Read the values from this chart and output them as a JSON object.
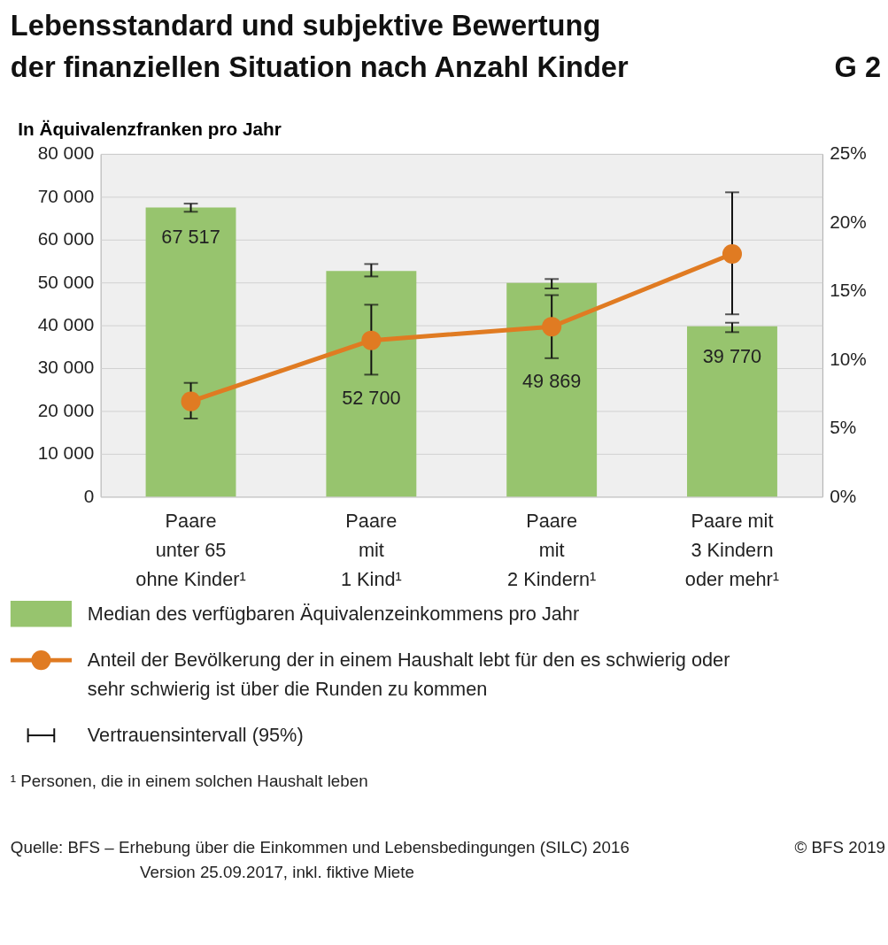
{
  "chart_data": {
    "type": "bar",
    "title": "Lebensstandard und subjektive Bewertung\nder finanziellen Situation nach Anzahl Kinder",
    "ylabel": "In Äquivalenzfranken pro Jahr",
    "categories": [
      "Paare\nunter 65\nohne Kinder¹",
      "Paare\nmit\n1 Kind¹",
      "Paare\nmit\n2 Kindern¹",
      "Paare mit\n3 Kindern\noder mehr¹"
    ],
    "series": [
      {
        "name": "Median des verfügbaren Äquivalenzeinkommens pro Jahr",
        "color": "#97c46e",
        "values": [
          67517,
          52700,
          49869,
          39770
        ],
        "value_labels": [
          "67 517",
          "52 700",
          "49 869",
          "39 770"
        ],
        "errors": [
          [
            66500,
            68400
          ],
          [
            51400,
            54300
          ],
          [
            48600,
            50800
          ],
          [
            38400,
            40600
          ]
        ]
      },
      {
        "name": "Anteil der Bevölkerung der in einem Haushalt lebt für den es schwierig oder\nsehr schwierig ist über die Runden zu kommen",
        "type": "line",
        "axis": "y2",
        "color": "#e07b22",
        "marker": "circle",
        "values": [
          6.95,
          11.4,
          12.4,
          17.7
        ],
        "errors": [
          [
            5.7,
            8.3
          ],
          [
            8.9,
            14.0
          ],
          [
            10.1,
            14.7
          ],
          [
            13.3,
            22.2
          ]
        ]
      }
    ],
    "ylim": [
      0,
      80000
    ],
    "yticks": [
      {
        "value": 0,
        "label": "0"
      },
      {
        "value": 10000,
        "label": "10 000"
      },
      {
        "value": 20000,
        "label": "20 000"
      },
      {
        "value": 30000,
        "label": "30 000"
      },
      {
        "value": 40000,
        "label": "40 000"
      },
      {
        "value": 50000,
        "label": "50 000"
      },
      {
        "value": 60000,
        "label": "60 000"
      },
      {
        "value": 70000,
        "label": "70 000"
      },
      {
        "value": 80000,
        "label": "80 000"
      }
    ],
    "y2lim": [
      0,
      25
    ],
    "y2ticks": [
      {
        "value": 0,
        "label": "0%"
      },
      {
        "value": 5,
        "label": "5%"
      },
      {
        "value": 10,
        "label": "10%"
      },
      {
        "value": 15,
        "label": "15%"
      },
      {
        "value": 20,
        "label": "20%"
      },
      {
        "value": 25,
        "label": "25%"
      }
    ],
    "grid": "y",
    "legend": "bottom",
    "annotations": [
      "G 2",
      "Vertrauensintervall (95%)",
      "¹   Personen, die in einem solchen Haushalt leben",
      "Quelle: BFS – Erhebung über die Einkommen und Lebensbedingungen (SILC) 2016",
      "© BFS 2019",
      "Version 25.09.2017, inkl. fiktive Miete"
    ]
  }
}
